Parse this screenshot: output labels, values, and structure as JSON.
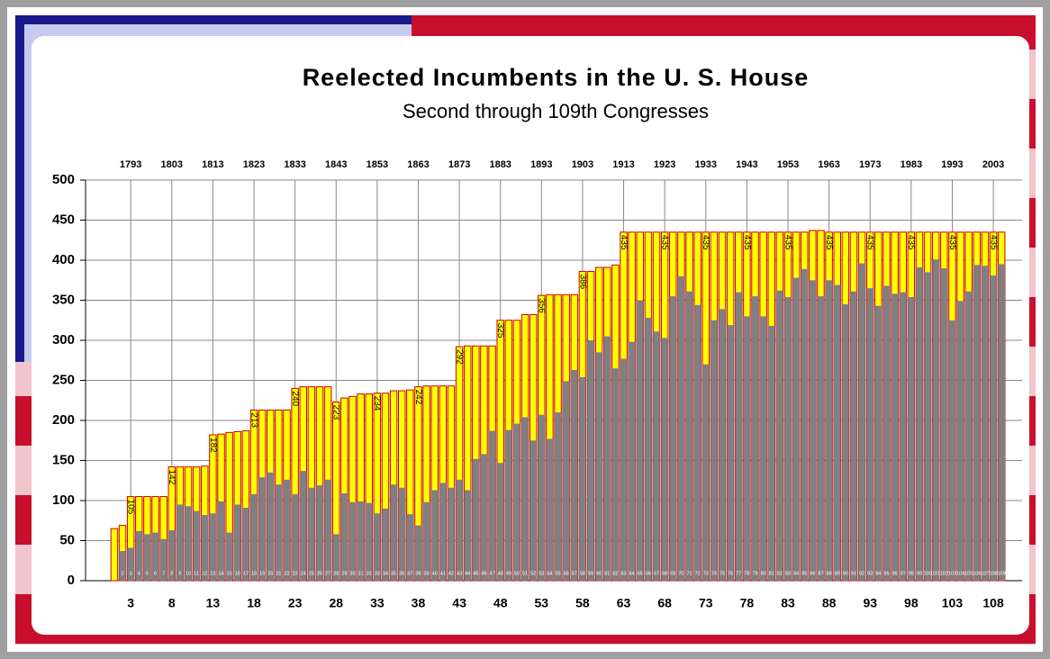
{
  "chart_data": {
    "type": "bar",
    "title": "Reelected Incumbents in the U. S. House",
    "subtitle": "Second through 109th Congresses",
    "x": [
      1,
      2,
      3,
      4,
      5,
      6,
      7,
      8,
      9,
      10,
      11,
      12,
      13,
      14,
      15,
      16,
      17,
      18,
      19,
      20,
      21,
      22,
      23,
      24,
      25,
      26,
      27,
      28,
      29,
      30,
      31,
      32,
      33,
      34,
      35,
      36,
      37,
      38,
      39,
      40,
      41,
      42,
      43,
      44,
      45,
      46,
      47,
      48,
      49,
      50,
      51,
      52,
      53,
      54,
      55,
      56,
      57,
      58,
      59,
      60,
      61,
      62,
      63,
      64,
      65,
      66,
      67,
      68,
      69,
      70,
      71,
      72,
      73,
      74,
      75,
      76,
      77,
      78,
      79,
      80,
      81,
      82,
      83,
      84,
      85,
      86,
      87,
      88,
      89,
      90,
      91,
      92,
      93,
      94,
      95,
      96,
      97,
      98,
      99,
      100,
      101,
      102,
      103,
      104,
      105,
      106,
      107,
      108,
      109
    ],
    "series": [
      {
        "color": "#ffff00",
        "edge": "#cc0000",
        "values": [
          65,
          69,
          105,
          105,
          105,
          105,
          105,
          142,
          142,
          142,
          142,
          143,
          182,
          183,
          185,
          186,
          187,
          213,
          213,
          213,
          213,
          213,
          240,
          242,
          242,
          242,
          242,
          223,
          228,
          230,
          233,
          233,
          234,
          234,
          237,
          237,
          238,
          242,
          243,
          243,
          243,
          243,
          292,
          293,
          293,
          293,
          293,
          325,
          325,
          325,
          332,
          332,
          356,
          357,
          357,
          357,
          357,
          386,
          386,
          391,
          391,
          394,
          435,
          435,
          435,
          435,
          435,
          435,
          435,
          435,
          435,
          435,
          435,
          435,
          435,
          435,
          435,
          435,
          435,
          435,
          435,
          435,
          435,
          435,
          435,
          437,
          437,
          435,
          435,
          435,
          435,
          435,
          435,
          435,
          435,
          435,
          435,
          435,
          435,
          435,
          435,
          435,
          435,
          435,
          435,
          435,
          435,
          435,
          435
        ]
      },
      {
        "color": "#808080",
        "values": [
          0,
          37,
          41,
          62,
          58,
          60,
          52,
          63,
          95,
          93,
          87,
          82,
          84,
          99,
          60,
          95,
          91,
          108,
          129,
          135,
          120,
          126,
          108,
          137,
          116,
          119,
          126,
          58,
          109,
          98,
          99,
          97,
          84,
          90,
          120,
          116,
          83,
          69,
          98,
          113,
          122,
          116,
          126,
          113,
          152,
          158,
          187,
          147,
          188,
          196,
          204,
          175,
          207,
          177,
          210,
          249,
          263,
          254,
          300,
          285,
          305,
          265,
          277,
          298,
          350,
          328,
          311,
          303,
          355,
          380,
          361,
          344,
          270,
          325,
          339,
          319,
          360,
          330,
          355,
          330,
          318,
          362,
          354,
          378,
          389,
          375,
          355,
          375,
          369,
          345,
          361,
          396,
          365,
          343,
          368,
          358,
          360,
          354,
          391,
          385,
          401,
          390,
          325,
          349,
          361,
          394,
          393,
          381,
          395
        ]
      }
    ],
    "xlim": [
      -2.5,
      111.5
    ],
    "xticks": [
      3,
      8,
      13,
      18,
      23,
      28,
      33,
      38,
      43,
      48,
      53,
      58,
      63,
      68,
      73,
      78,
      83,
      88,
      93,
      98,
      103,
      108
    ],
    "x2ticks": [
      {
        "value": 3,
        "label": "1793"
      },
      {
        "value": 8,
        "label": "1803"
      },
      {
        "value": 13,
        "label": "1813"
      },
      {
        "value": 18,
        "label": "1823"
      },
      {
        "value": 23,
        "label": "1833"
      },
      {
        "value": 28,
        "label": "1843"
      },
      {
        "value": 33,
        "label": "1853"
      },
      {
        "value": 38,
        "label": "1863"
      },
      {
        "value": 43,
        "label": "1873"
      },
      {
        "value": 48,
        "label": "1883"
      },
      {
        "value": 53,
        "label": "1893"
      },
      {
        "value": 58,
        "label": "1903"
      },
      {
        "value": 63,
        "label": "1913"
      },
      {
        "value": 68,
        "label": "1923"
      },
      {
        "value": 73,
        "label": "1933"
      },
      {
        "value": 78,
        "label": "1943"
      },
      {
        "value": 83,
        "label": "1953"
      },
      {
        "value": 88,
        "label": "1963"
      },
      {
        "value": 93,
        "label": "1973"
      },
      {
        "value": 98,
        "label": "1983"
      },
      {
        "value": 103,
        "label": "1993"
      },
      {
        "value": 108,
        "label": "2003"
      }
    ],
    "ylim": [
      0,
      500
    ],
    "yticks": [
      0,
      50,
      100,
      150,
      200,
      250,
      300,
      350,
      400,
      450,
      500
    ],
    "grid": true
  }
}
